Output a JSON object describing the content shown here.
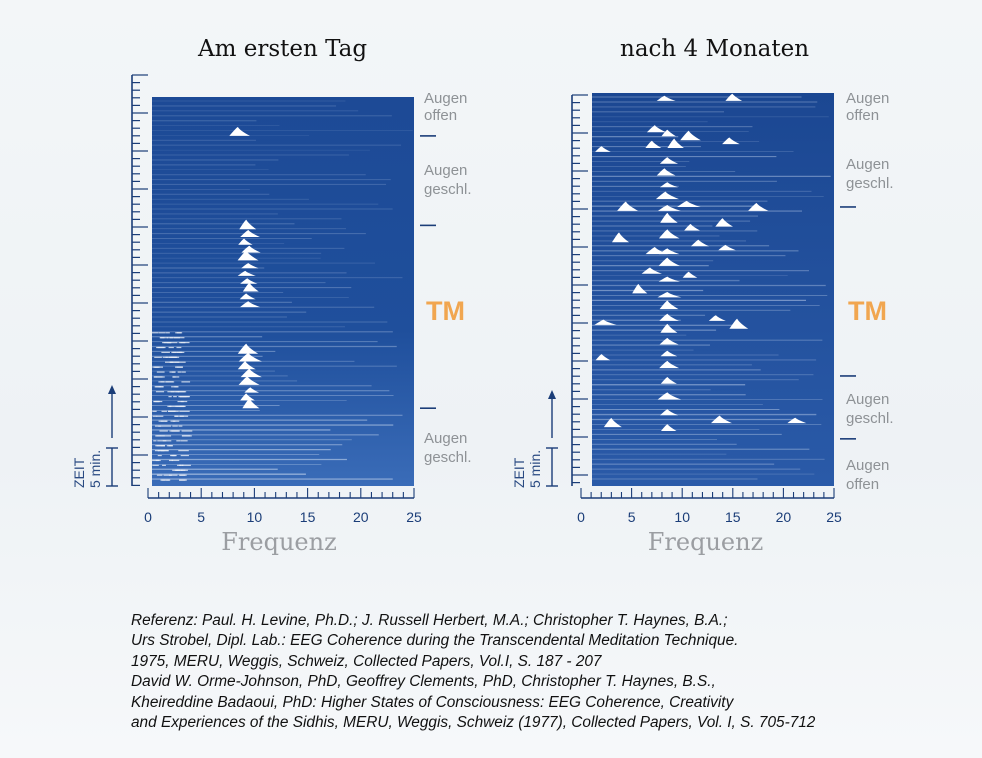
{
  "chart_data": [
    {
      "type": "heatmap",
      "title": "Am ersten Tag",
      "xlabel": "Frequenz",
      "xlim": [
        0,
        25
      ],
      "xticks": [
        "0",
        "5",
        "10",
        "15",
        "20",
        "25"
      ],
      "time_label": "ZEIT",
      "time_scale": "5 min.",
      "segments": [
        {
          "label": "Augen offen",
          "start": 0,
          "end": 0.1
        },
        {
          "label": "Augen geschl.",
          "start": 0.1,
          "end": 0.33
        },
        {
          "label": "TM",
          "start": 0.33,
          "end": 0.8
        },
        {
          "label": "Augen geschl.",
          "start": 0.8,
          "end": 1.0
        }
      ],
      "peaks": [
        {
          "f": 8.2,
          "t": 0.1
        },
        {
          "f": 9.0,
          "t": 0.34
        },
        {
          "f": 9.2,
          "t": 0.36
        },
        {
          "f": 8.8,
          "t": 0.38
        },
        {
          "f": 9.3,
          "t": 0.4
        },
        {
          "f": 9.0,
          "t": 0.42
        },
        {
          "f": 9.2,
          "t": 0.44
        },
        {
          "f": 8.9,
          "t": 0.46
        },
        {
          "f": 9.1,
          "t": 0.48
        },
        {
          "f": 9.3,
          "t": 0.5
        },
        {
          "f": 9.0,
          "t": 0.52
        },
        {
          "f": 9.2,
          "t": 0.54
        },
        {
          "f": 9.0,
          "t": 0.66
        },
        {
          "f": 9.2,
          "t": 0.68
        },
        {
          "f": 8.9,
          "t": 0.7
        },
        {
          "f": 9.3,
          "t": 0.72
        },
        {
          "f": 9.1,
          "t": 0.74
        },
        {
          "f": 9.4,
          "t": 0.76
        },
        {
          "f": 9.0,
          "t": 0.78
        },
        {
          "f": 9.3,
          "t": 0.8
        }
      ]
    },
    {
      "type": "heatmap",
      "title": "nach 4 Monaten",
      "xlabel": "Frequenz",
      "xlim": [
        0,
        25
      ],
      "xticks": [
        "0",
        "5",
        "10",
        "15",
        "20",
        "25"
      ],
      "time_label": "ZEIT",
      "time_scale": "5 min.",
      "segments": [
        {
          "label": "Augen offen",
          "start": 0,
          "end": 0.1
        },
        {
          "label": "Augen geschl.",
          "start": 0.1,
          "end": 0.29
        },
        {
          "label": "TM",
          "start": 0.29,
          "end": 0.72
        },
        {
          "label": "Augen geschl.",
          "start": 0.72,
          "end": 0.88
        },
        {
          "label": "Augen offen",
          "start": 0.88,
          "end": 1.0
        }
      ],
      "peaks": [
        {
          "f": 7.5,
          "t": 0.02
        },
        {
          "f": 14.5,
          "t": 0.02
        },
        {
          "f": 6.5,
          "t": 0.1
        },
        {
          "f": 7.8,
          "t": 0.11
        },
        {
          "f": 10.0,
          "t": 0.12
        },
        {
          "f": 14.2,
          "t": 0.13
        },
        {
          "f": 6.2,
          "t": 0.14
        },
        {
          "f": 8.5,
          "t": 0.14
        },
        {
          "f": 1.0,
          "t": 0.15
        },
        {
          "f": 7.8,
          "t": 0.18
        },
        {
          "f": 7.5,
          "t": 0.21
        },
        {
          "f": 7.8,
          "t": 0.24
        },
        {
          "f": 7.6,
          "t": 0.27
        },
        {
          "f": 3.5,
          "t": 0.3
        },
        {
          "f": 7.8,
          "t": 0.3
        },
        {
          "f": 9.8,
          "t": 0.29
        },
        {
          "f": 17.0,
          "t": 0.3
        },
        {
          "f": 7.8,
          "t": 0.33
        },
        {
          "f": 10.2,
          "t": 0.35
        },
        {
          "f": 13.5,
          "t": 0.34
        },
        {
          "f": 2.8,
          "t": 0.38
        },
        {
          "f": 7.8,
          "t": 0.37
        },
        {
          "f": 11.0,
          "t": 0.39
        },
        {
          "f": 13.8,
          "t": 0.4
        },
        {
          "f": 6.5,
          "t": 0.41
        },
        {
          "f": 7.8,
          "t": 0.41
        },
        {
          "f": 7.8,
          "t": 0.44
        },
        {
          "f": 6.0,
          "t": 0.46
        },
        {
          "f": 10.0,
          "t": 0.47
        },
        {
          "f": 7.8,
          "t": 0.48
        },
        {
          "f": 4.8,
          "t": 0.51
        },
        {
          "f": 7.8,
          "t": 0.52
        },
        {
          "f": 7.8,
          "t": 0.55
        },
        {
          "f": 12.8,
          "t": 0.58
        },
        {
          "f": 15.0,
          "t": 0.6
        },
        {
          "f": 1.2,
          "t": 0.59
        },
        {
          "f": 7.8,
          "t": 0.58
        },
        {
          "f": 7.8,
          "t": 0.61
        },
        {
          "f": 7.8,
          "t": 0.64
        },
        {
          "f": 7.8,
          "t": 0.67
        },
        {
          "f": 1.0,
          "t": 0.68
        },
        {
          "f": 7.8,
          "t": 0.7
        },
        {
          "f": 7.8,
          "t": 0.74
        },
        {
          "f": 7.8,
          "t": 0.78
        },
        {
          "f": 7.8,
          "t": 0.82
        },
        {
          "f": 2.0,
          "t": 0.85
        },
        {
          "f": 13.2,
          "t": 0.84
        },
        {
          "f": 21.0,
          "t": 0.84
        },
        {
          "f": 7.8,
          "t": 0.86
        }
      ]
    }
  ],
  "reference": {
    "lines": [
      "Referenz: Paul. H. Levine, Ph.D.; J. Russell Herbert, M.A.; Christopher T. Haynes, B.A.;",
      "Urs Strobel, Dipl. Lab.: EEG Coherence during the Transcendental Meditation Technique.",
      "1975, MERU, Weggis, Schweiz, Collected Papers, Vol.I, S. 187 - 207",
      "David W. Orme-Johnson, PhD, Geoffrey Clements, PhD, Christopher T. Haynes, B.S.,",
      "Kheireddine Badaoui, PhD: Higher States of Consciousness: EEG Coherence, Creativity",
      "and Experiences of the Sidhis, MERU, Weggis, Schweiz (1977), Collected Papers, Vol. I, S. 705-712"
    ]
  },
  "colors": {
    "panel_dark": "#1d4a96",
    "panel_light": "#3a6cb8",
    "trace": "#c6d6ee",
    "peak": "#ffffff",
    "axis": "#1b3d78",
    "tm": "#f1a650",
    "side_label": "#8e9296"
  }
}
